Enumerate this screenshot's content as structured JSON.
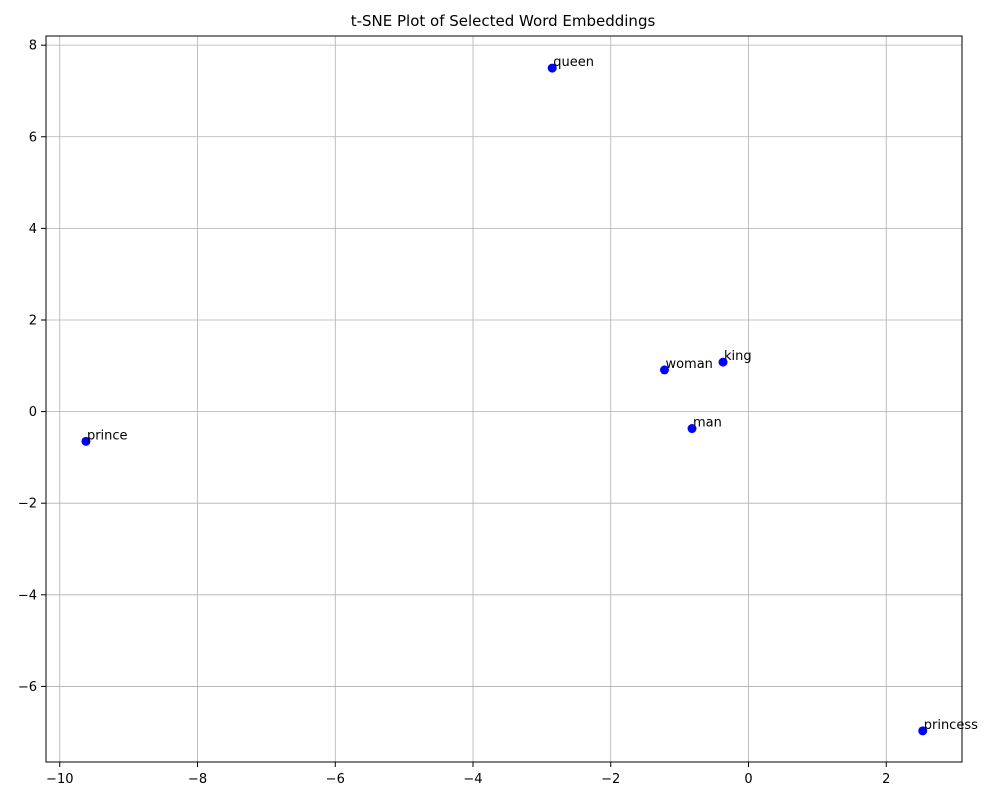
{
  "chart_data": {
    "type": "scatter",
    "title": "t-SNE Plot of Selected Word Embeddings",
    "xlabel": "",
    "ylabel": "",
    "xlim": [
      -10.2,
      3.1
    ],
    "ylim": [
      -7.65,
      8.2
    ],
    "xticks": [
      -10,
      -8,
      -6,
      -4,
      -2,
      0,
      2
    ],
    "yticks": [
      -6,
      -4,
      -2,
      0,
      2,
      4,
      6,
      8
    ],
    "grid": true,
    "marker_color": "#0000ff",
    "points": [
      {
        "label": "king",
        "x": -0.37,
        "y": 1.08
      },
      {
        "label": "queen",
        "x": -2.85,
        "y": 7.5
      },
      {
        "label": "man",
        "x": -0.82,
        "y": -0.37
      },
      {
        "label": "woman",
        "x": -1.22,
        "y": 0.91
      },
      {
        "label": "prince",
        "x": -9.62,
        "y": -0.65
      },
      {
        "label": "princess",
        "x": 2.53,
        "y": -6.97
      }
    ]
  }
}
